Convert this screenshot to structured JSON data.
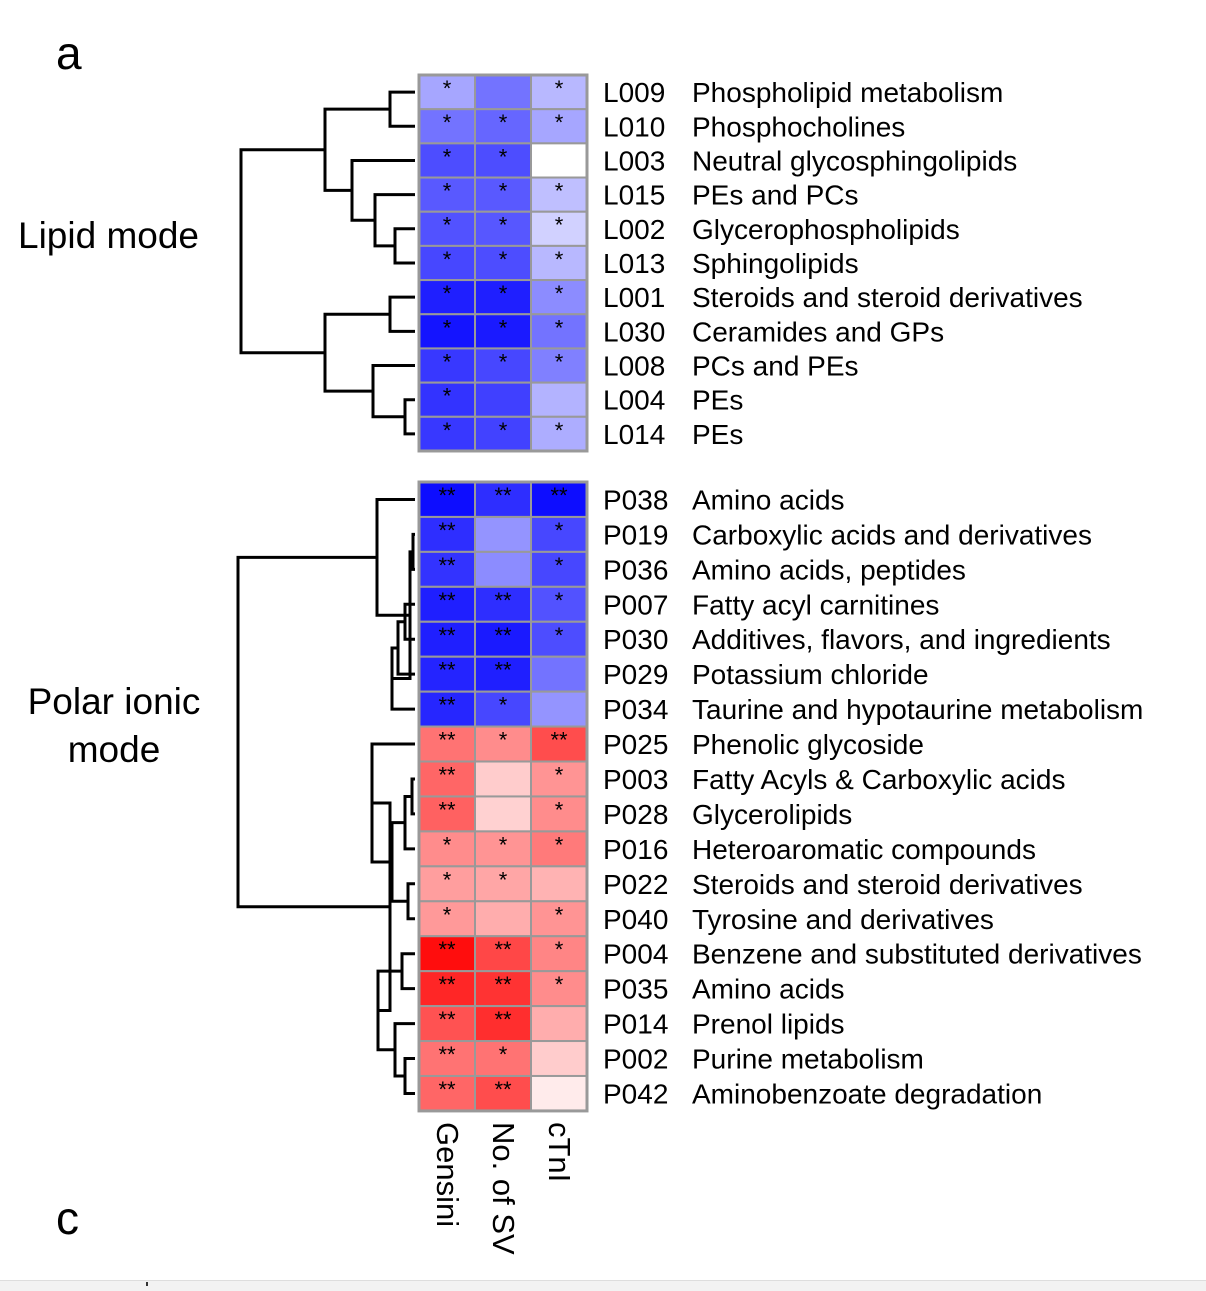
{
  "panel_labels": {
    "a": "a",
    "c": "c"
  },
  "group_labels": {
    "lipid": "Lipid mode",
    "polar_line1": "Polar ionic",
    "polar_line2": "mode"
  },
  "colors": {
    "negative": "#0000ff",
    "positive": "#ff0000",
    "neutral": "#ffffff",
    "cell_border": "#999999"
  },
  "chart_data": [
    {
      "type": "heatmap",
      "name": "Lipid mode",
      "columns": [
        "Gensini",
        "No. of SV",
        "cTnI"
      ],
      "rows": [
        {
          "id": "L009",
          "label": "Phospholipid metabolism",
          "values": [
            -0.35,
            -0.55,
            -0.28
          ],
          "sig": [
            "*",
            "",
            "*"
          ]
        },
        {
          "id": "L010",
          "label": "Phosphocholines",
          "values": [
            -0.55,
            -0.6,
            -0.35
          ],
          "sig": [
            "*",
            "*",
            "*"
          ]
        },
        {
          "id": "L003",
          "label": "Neutral glycosphingolipids",
          "values": [
            -0.7,
            -0.7,
            0.0
          ],
          "sig": [
            "*",
            "*",
            ""
          ]
        },
        {
          "id": "L015",
          "label": "PEs and PCs",
          "values": [
            -0.65,
            -0.65,
            -0.25
          ],
          "sig": [
            "*",
            "*",
            "*"
          ]
        },
        {
          "id": "L002",
          "label": "Glycerophospholipids",
          "values": [
            -0.68,
            -0.66,
            -0.18
          ],
          "sig": [
            "*",
            "*",
            "*"
          ]
        },
        {
          "id": "L013",
          "label": "Sphingolipids",
          "values": [
            -0.72,
            -0.7,
            -0.28
          ],
          "sig": [
            "*",
            "*",
            "*"
          ]
        },
        {
          "id": "L001",
          "label": "Steroids and steroid derivatives",
          "values": [
            -0.88,
            -0.88,
            -0.45
          ],
          "sig": [
            "*",
            "*",
            "*"
          ]
        },
        {
          "id": "L030",
          "label": "Ceramides and GPs",
          "values": [
            -0.92,
            -0.9,
            -0.55
          ],
          "sig": [
            "*",
            "*",
            "*"
          ]
        },
        {
          "id": "L008",
          "label": "PCs and PEs",
          "values": [
            -0.78,
            -0.72,
            -0.5
          ],
          "sig": [
            "*",
            "*",
            "*"
          ]
        },
        {
          "id": "L004",
          "label": "PEs",
          "values": [
            -0.8,
            -0.75,
            -0.3
          ],
          "sig": [
            "*",
            "",
            ""
          ]
        },
        {
          "id": "L014",
          "label": "PEs",
          "values": [
            -0.78,
            -0.74,
            -0.32
          ],
          "sig": [
            "*",
            "*",
            "*"
          ]
        }
      ]
    },
    {
      "type": "heatmap",
      "name": "Polar ionic mode",
      "columns": [
        "Gensini",
        "No. of SV",
        "cTnI"
      ],
      "rows": [
        {
          "id": "P038",
          "label": "Amino acids",
          "values": [
            -0.95,
            -0.82,
            -0.95
          ],
          "sig": [
            "**",
            "**",
            "**"
          ]
        },
        {
          "id": "P019",
          "label": "Carboxylic acids and derivatives",
          "values": [
            -0.82,
            -0.42,
            -0.72
          ],
          "sig": [
            "**",
            "",
            "*"
          ]
        },
        {
          "id": "P036",
          "label": "Amino acids, peptides",
          "values": [
            -0.8,
            -0.45,
            -0.72
          ],
          "sig": [
            "**",
            "",
            "*"
          ]
        },
        {
          "id": "P007",
          "label": "Fatty acyl carnitines",
          "values": [
            -0.88,
            -0.82,
            -0.68
          ],
          "sig": [
            "**",
            "**",
            "*"
          ]
        },
        {
          "id": "P030",
          "label": "Additives, flavors, and ingredients",
          "values": [
            -0.88,
            -0.9,
            -0.7
          ],
          "sig": [
            "**",
            "**",
            "*"
          ]
        },
        {
          "id": "P029",
          "label": "Potassium chloride",
          "values": [
            -0.86,
            -0.88,
            -0.55
          ],
          "sig": [
            "**",
            "**",
            ""
          ]
        },
        {
          "id": "P034",
          "label": "Taurine and hypotaurine metabolism",
          "values": [
            -0.85,
            -0.72,
            -0.42
          ],
          "sig": [
            "**",
            "*",
            ""
          ]
        },
        {
          "id": "P025",
          "label": "Phenolic glycoside",
          "values": [
            0.55,
            0.45,
            0.7
          ],
          "sig": [
            "**",
            "*",
            "**"
          ]
        },
        {
          "id": "P003",
          "label": "Fatty Acyls & Carboxylic acids",
          "values": [
            0.6,
            0.2,
            0.42
          ],
          "sig": [
            "**",
            "",
            "*"
          ]
        },
        {
          "id": "P028",
          "label": "Glycerolipids",
          "values": [
            0.62,
            0.18,
            0.45
          ],
          "sig": [
            "**",
            "",
            "*"
          ]
        },
        {
          "id": "P016",
          "label": "Heteroaromatic compounds",
          "values": [
            0.45,
            0.42,
            0.52
          ],
          "sig": [
            "*",
            "*",
            "*"
          ]
        },
        {
          "id": "P022",
          "label": "Steroids and steroid derivatives",
          "values": [
            0.38,
            0.35,
            0.3
          ],
          "sig": [
            "*",
            "*",
            ""
          ]
        },
        {
          "id": "P040",
          "label": "Tyrosine and derivatives",
          "values": [
            0.4,
            0.32,
            0.42
          ],
          "sig": [
            "*",
            "",
            "*"
          ]
        },
        {
          "id": "P004",
          "label": "Benzene and substituted derivatives",
          "values": [
            0.95,
            0.72,
            0.48
          ],
          "sig": [
            "**",
            "**",
            "*"
          ]
        },
        {
          "id": "P035",
          "label": "Amino acids",
          "values": [
            0.85,
            0.8,
            0.45
          ],
          "sig": [
            "**",
            "**",
            "*"
          ]
        },
        {
          "id": "P014",
          "label": "Prenol lipids",
          "values": [
            0.68,
            0.82,
            0.32
          ],
          "sig": [
            "**",
            "**",
            ""
          ]
        },
        {
          "id": "P002",
          "label": "Purine metabolism",
          "values": [
            0.55,
            0.55,
            0.2
          ],
          "sig": [
            "**",
            "*",
            ""
          ]
        },
        {
          "id": "P042",
          "label": "Aminobenzoate degradation",
          "values": [
            0.6,
            0.7,
            0.08
          ],
          "sig": [
            "**",
            "**",
            ""
          ]
        }
      ]
    }
  ]
}
